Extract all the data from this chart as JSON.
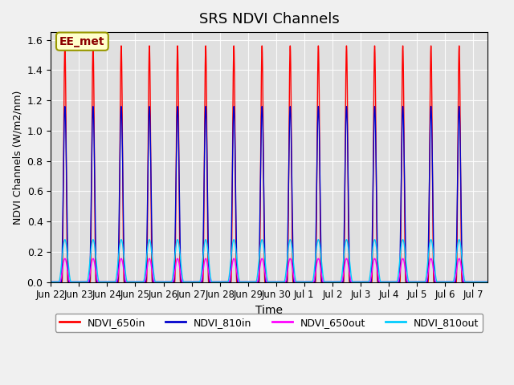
{
  "title": "SRS NDVI Channels",
  "xlabel": "Time",
  "ylabel": "NDVI Channels (W/m2/nm)",
  "ylim": [
    0,
    1.65
  ],
  "xlim": [
    0,
    15.5
  ],
  "annotation_text": "EE_met",
  "colors": {
    "NDVI_650in": "#ff0000",
    "NDVI_810in": "#0000cc",
    "NDVI_650out": "#ff00ff",
    "NDVI_810out": "#00ccff"
  },
  "legend_labels": [
    "NDVI_650in",
    "NDVI_810in",
    "NDVI_650out",
    "NDVI_810out"
  ],
  "tick_labels": [
    "Jun 22",
    "Jun 23",
    "Jun 24",
    "Jun 25",
    "Jun 26",
    "Jun 27",
    "Jun 28",
    "Jun 29",
    "Jun 30",
    "Jul 1",
    "Jul 2",
    "Jul 3",
    "Jul 4",
    "Jul 5",
    "Jul 6",
    "Jul 7"
  ],
  "background_color": "#e0e0e0",
  "figure_facecolor": "#f0f0f0",
  "peak_650in": 1.56,
  "peak_810in": 1.16,
  "peak_650out": 0.155,
  "peak_810out": 0.28,
  "num_cycles": 15,
  "title_fontsize": 13
}
